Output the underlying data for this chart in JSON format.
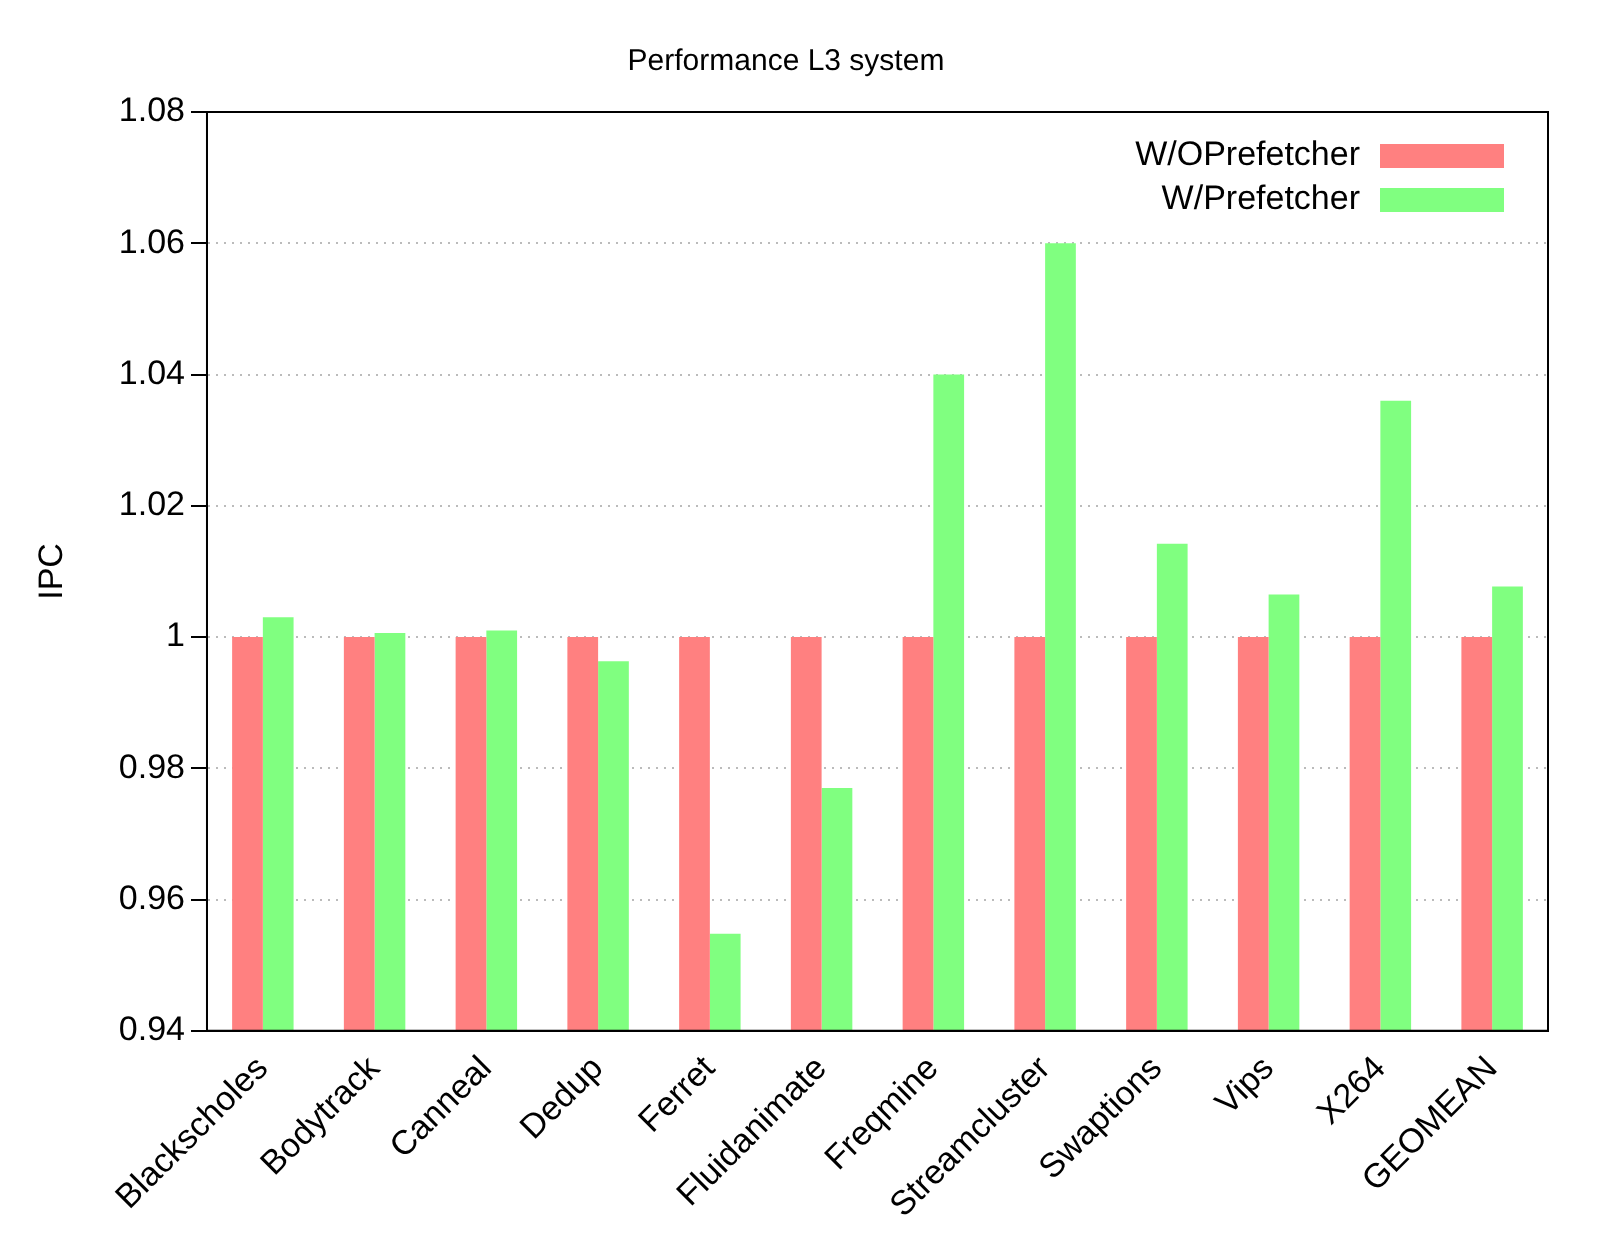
{
  "chart_data": {
    "type": "bar",
    "title": "Performance L3 system",
    "ylabel": "IPC",
    "categories": [
      "Blackscholes",
      "Bodytrack",
      "Canneal",
      "Dedup",
      "Ferret",
      "Fluidanimate",
      "Freqmine",
      "Streamcluster",
      "Swaptions",
      "Vips",
      "X264",
      "GEOMEAN"
    ],
    "series": [
      {
        "name": "W/OPrefetcher",
        "color": "#ff8080",
        "values": [
          1,
          1,
          1,
          1,
          1,
          1,
          1,
          1,
          1,
          1,
          1,
          1
        ]
      },
      {
        "name": "W/Prefetcher",
        "color": "#80ff80",
        "values": [
          1.003,
          1.0006,
          1.001,
          0.9963,
          0.9548,
          0.977,
          1.04,
          1.06,
          1.0142,
          1.0065,
          1.036,
          1.0077
        ]
      }
    ],
    "ylim": [
      0.94,
      1.08
    ],
    "yticks": [
      0.94,
      0.96,
      0.98,
      {
        "value": 1,
        "label": "1"
      },
      1.02,
      1.04,
      1.06,
      1.08
    ],
    "grid": "y",
    "legend": "top right"
  }
}
